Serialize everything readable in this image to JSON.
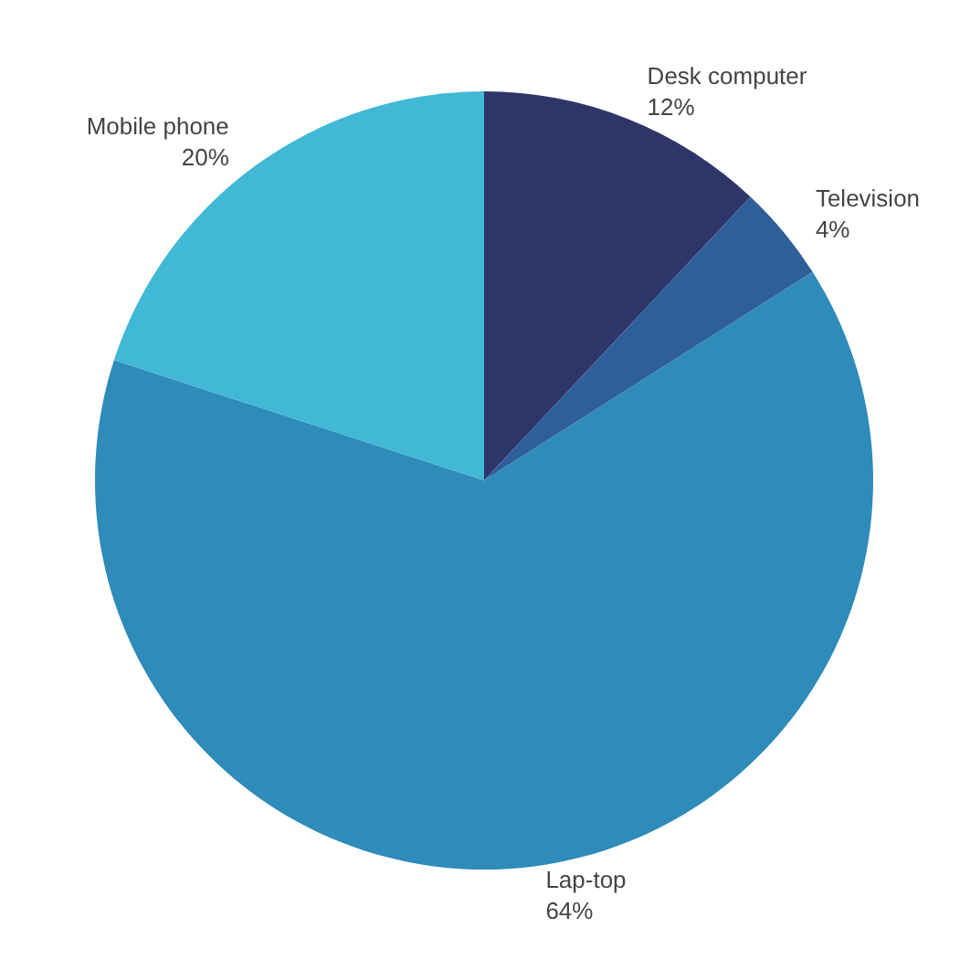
{
  "chart_data": {
    "type": "pie",
    "categories": [
      "Desk computer",
      "Television",
      "Lap-top",
      "Mobile phone"
    ],
    "values": [
      12,
      4,
      64,
      20
    ],
    "value_labels": [
      "12%",
      "4%",
      "64%",
      "20%"
    ],
    "colors": [
      "#2e3568",
      "#2f5f9a",
      "#2e8bba",
      "#41b8d6"
    ],
    "legend": false
  }
}
